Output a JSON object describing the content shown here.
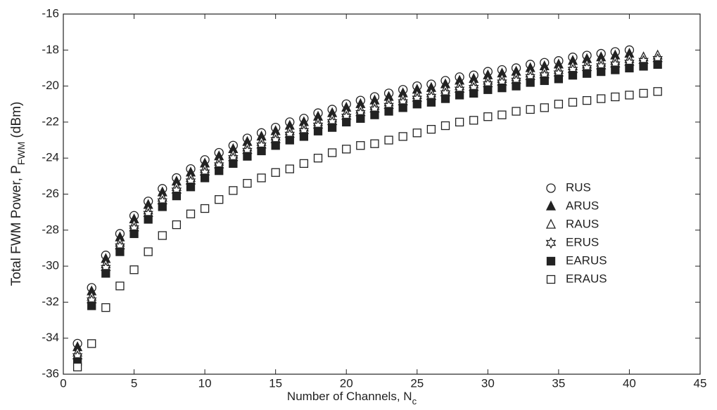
{
  "chart_data": {
    "type": "scatter",
    "xlabel": {
      "text": "Number of Channels, N",
      "sub": "c"
    },
    "ylabel": {
      "text": "Total FWM Power, P",
      "sub": "FWM",
      "after": " (dBm)"
    },
    "xlim": [
      0,
      45
    ],
    "xticks": [
      0,
      5,
      10,
      15,
      20,
      25,
      30,
      35,
      40,
      45
    ],
    "ylim": [
      -36,
      -16
    ],
    "yticks": [
      -36,
      -34,
      -32,
      -30,
      -28,
      -26,
      -24,
      -22,
      -20,
      -18,
      -16
    ],
    "legend": "right",
    "x": [
      1,
      2,
      3,
      4,
      5,
      6,
      7,
      8,
      9,
      10,
      11,
      12,
      13,
      14,
      15,
      16,
      17,
      18,
      19,
      20,
      21,
      22,
      23,
      24,
      25,
      26,
      27,
      28,
      29,
      30,
      31,
      32,
      33,
      34,
      35,
      36,
      37,
      38,
      39,
      40,
      41,
      42
    ],
    "series": [
      {
        "name": "RUS",
        "marker": "circle",
        "color": "#222222",
        "values": [
          -34.3,
          -31.2,
          -29.4,
          -28.2,
          -27.2,
          -26.4,
          -25.7,
          -25.1,
          -24.6,
          -24.1,
          -23.7,
          -23.3,
          -22.9,
          -22.6,
          -22.3,
          -22.0,
          -21.8,
          -21.5,
          -21.3,
          -21.0,
          -20.8,
          -20.6,
          -20.4,
          -20.2,
          -20.0,
          -19.9,
          -19.7,
          -19.5,
          -19.4,
          -19.2,
          -19.1,
          -19.0,
          -18.8,
          -18.7,
          -18.6,
          -18.4,
          -18.3,
          -18.2,
          -18.1,
          -18.0,
          null,
          null
        ]
      },
      {
        "name": "ARUS",
        "marker": "triangle-filled",
        "color": "#222222",
        "values": [
          -34.5,
          -31.4,
          -29.6,
          -28.4,
          -27.4,
          -26.6,
          -25.9,
          -25.3,
          -24.8,
          -24.3,
          -23.9,
          -23.5,
          -23.1,
          -22.8,
          -22.5,
          -22.2,
          -22.0,
          -21.7,
          -21.5,
          -21.2,
          -21.0,
          -20.8,
          -20.6,
          -20.4,
          -20.2,
          -20.1,
          -19.9,
          -19.7,
          -19.6,
          -19.4,
          -19.3,
          -19.2,
          -19.0,
          -18.9,
          -18.8,
          -18.6,
          -18.5,
          -18.4,
          -18.3,
          -18.2,
          null,
          null
        ]
      },
      {
        "name": "RAUS",
        "marker": "triangle",
        "color": "#222222",
        "values": [
          -34.8,
          -31.7,
          -29.9,
          -28.7,
          -27.7,
          -26.9,
          -26.2,
          -25.6,
          -25.1,
          -24.6,
          -24.2,
          -23.8,
          -23.4,
          -23.1,
          -22.8,
          -22.5,
          -22.3,
          -22.0,
          -21.8,
          -21.5,
          -21.3,
          -21.1,
          -20.9,
          -20.7,
          -20.5,
          -20.4,
          -20.2,
          -20.0,
          -19.9,
          -19.7,
          -19.6,
          -19.5,
          -19.3,
          -19.2,
          -19.1,
          -18.9,
          -18.8,
          -18.7,
          -18.6,
          -18.5,
          -18.4,
          -18.3
        ]
      },
      {
        "name": "ERUS",
        "marker": "star",
        "color": "#222222",
        "values": [
          -35.0,
          -31.9,
          -30.1,
          -28.9,
          -27.9,
          -27.1,
          -26.4,
          -25.8,
          -25.3,
          -24.8,
          -24.4,
          -24.0,
          -23.6,
          -23.3,
          -23.0,
          -22.7,
          -22.5,
          -22.2,
          -22.0,
          -21.7,
          -21.5,
          -21.3,
          -21.1,
          -20.9,
          -20.7,
          -20.6,
          -20.4,
          -20.2,
          -20.1,
          -19.9,
          -19.8,
          -19.7,
          -19.5,
          -19.4,
          -19.3,
          -19.1,
          -19.0,
          -18.9,
          -18.8,
          -18.7,
          -18.6,
          -18.5
        ]
      },
      {
        "name": "EARUS",
        "marker": "square-filled",
        "color": "#222222",
        "values": [
          -35.3,
          -32.2,
          -30.4,
          -29.2,
          -28.2,
          -27.4,
          -26.7,
          -26.1,
          -25.6,
          -25.1,
          -24.7,
          -24.3,
          -23.9,
          -23.6,
          -23.3,
          -23.0,
          -22.8,
          -22.5,
          -22.3,
          -22.0,
          -21.8,
          -21.6,
          -21.4,
          -21.2,
          -21.0,
          -20.9,
          -20.7,
          -20.5,
          -20.4,
          -20.2,
          -20.1,
          -20.0,
          -19.8,
          -19.7,
          -19.6,
          -19.4,
          -19.3,
          -19.2,
          -19.1,
          -19.0,
          -18.9,
          -18.8
        ]
      },
      {
        "name": "ERAUS",
        "marker": "square",
        "color": "#222222",
        "values": [
          -35.6,
          -34.3,
          -32.3,
          -31.1,
          -30.2,
          -29.2,
          -28.3,
          -27.7,
          -27.1,
          -26.8,
          -26.3,
          -25.8,
          -25.4,
          -25.1,
          -24.8,
          -24.6,
          -24.3,
          -24.0,
          -23.7,
          -23.5,
          -23.3,
          -23.2,
          -23.0,
          -22.8,
          -22.6,
          -22.4,
          -22.2,
          -22.0,
          -21.9,
          -21.7,
          -21.6,
          -21.4,
          -21.3,
          -21.2,
          -21.0,
          -20.9,
          -20.8,
          -20.7,
          -20.6,
          -20.5,
          -20.4,
          -20.3
        ]
      }
    ]
  }
}
